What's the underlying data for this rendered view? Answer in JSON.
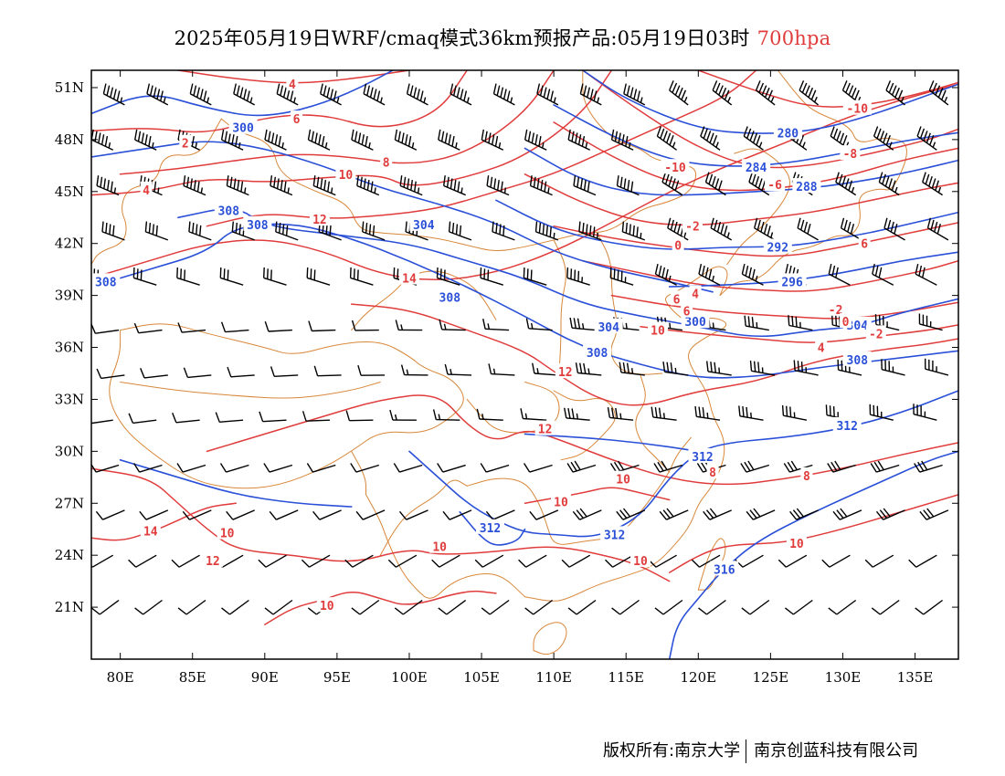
{
  "title": {
    "main": "2025年05月19日WRF/cmaq模式36km预报产品:05月19日03时",
    "level": "700hpa"
  },
  "map": {
    "lon_range": [
      78,
      138
    ],
    "lat_range": [
      18,
      52
    ],
    "lat_ticks": [
      "51N",
      "48N",
      "45N",
      "42N",
      "39N",
      "36N",
      "33N",
      "30N",
      "27N",
      "24N",
      "21N"
    ],
    "lat_tick_values": [
      51,
      48,
      45,
      42,
      39,
      36,
      33,
      30,
      27,
      24,
      21
    ],
    "lon_ticks": [
      "80E",
      "85E",
      "90E",
      "95E",
      "100E",
      "105E",
      "110E",
      "115E",
      "120E",
      "125E",
      "130E",
      "135E"
    ],
    "lon_tick_values": [
      80,
      85,
      90,
      95,
      100,
      105,
      110,
      115,
      120,
      125,
      130,
      135
    ],
    "colors": {
      "height_contour": "#2b50d8",
      "temperature_contour": "#e03c3c",
      "boundary": "#d8873a",
      "wind_barb": "#000000"
    },
    "height_labels": [
      {
        "text": "300",
        "lon": 88.5,
        "lat": 48.7
      },
      {
        "text": "308",
        "lon": 87.5,
        "lat": 43.9
      },
      {
        "text": "308",
        "lon": 89.5,
        "lat": 43.1
      },
      {
        "text": "304",
        "lon": 101.0,
        "lat": 43.1
      },
      {
        "text": "308",
        "lon": 79.0,
        "lat": 39.8
      },
      {
        "text": "308",
        "lon": 102.8,
        "lat": 38.9
      },
      {
        "text": "304",
        "lon": 113.8,
        "lat": 37.2
      },
      {
        "text": "300",
        "lon": 119.8,
        "lat": 37.5
      },
      {
        "text": "308",
        "lon": 113.0,
        "lat": 35.7
      },
      {
        "text": "280",
        "lon": 126.2,
        "lat": 48.4
      },
      {
        "text": "284",
        "lon": 124.0,
        "lat": 46.4
      },
      {
        "text": "288",
        "lon": 127.5,
        "lat": 45.3
      },
      {
        "text": "292",
        "lon": 125.5,
        "lat": 41.8
      },
      {
        "text": "296",
        "lon": 126.5,
        "lat": 39.8
      },
      {
        "text": "304",
        "lon": 131.0,
        "lat": 37.3
      },
      {
        "text": "308",
        "lon": 131.0,
        "lat": 35.3
      },
      {
        "text": "312",
        "lon": 130.3,
        "lat": 31.5
      },
      {
        "text": "312",
        "lon": 120.3,
        "lat": 29.7
      },
      {
        "text": "312",
        "lon": 105.6,
        "lat": 25.6
      },
      {
        "text": "312",
        "lon": 114.2,
        "lat": 25.2
      },
      {
        "text": "316",
        "lon": 121.8,
        "lat": 23.2
      }
    ],
    "temperature_labels": [
      {
        "text": "4",
        "lon": 91.9,
        "lat": 51.2
      },
      {
        "text": "6",
        "lon": 92.2,
        "lat": 49.2
      },
      {
        "text": "2",
        "lon": 84.5,
        "lat": 47.8
      },
      {
        "text": "4",
        "lon": 81.8,
        "lat": 45.1
      },
      {
        "text": "8",
        "lon": 98.4,
        "lat": 46.7
      },
      {
        "text": "10",
        "lon": 95.6,
        "lat": 46.0
      },
      {
        "text": "12",
        "lon": 93.8,
        "lat": 43.4
      },
      {
        "text": "14",
        "lon": 100.0,
        "lat": 40.0
      },
      {
        "text": "12",
        "lon": 110.8,
        "lat": 34.6
      },
      {
        "text": "12",
        "lon": 109.4,
        "lat": 31.3
      },
      {
        "text": "10",
        "lon": 110.5,
        "lat": 27.1
      },
      {
        "text": "10",
        "lon": 114.8,
        "lat": 28.4
      },
      {
        "text": "10",
        "lon": 102.1,
        "lat": 24.5
      },
      {
        "text": "10",
        "lon": 116.0,
        "lat": 23.7
      },
      {
        "text": "10",
        "lon": 87.4,
        "lat": 25.3
      },
      {
        "text": "12",
        "lon": 86.4,
        "lat": 23.7
      },
      {
        "text": "14",
        "lon": 82.1,
        "lat": 25.4
      },
      {
        "text": "10",
        "lon": 94.3,
        "lat": 21.1
      },
      {
        "text": "8",
        "lon": 121.0,
        "lat": 28.8
      },
      {
        "text": "8",
        "lon": 127.5,
        "lat": 28.6
      },
      {
        "text": "10",
        "lon": 126.8,
        "lat": 24.7
      },
      {
        "text": "-10",
        "lon": 118.4,
        "lat": 46.4
      },
      {
        "text": "-8",
        "lon": 130.5,
        "lat": 47.2
      },
      {
        "text": "-6",
        "lon": 125.3,
        "lat": 45.4
      },
      {
        "text": "-10",
        "lon": 131.0,
        "lat": 49.8
      },
      {
        "text": "-2",
        "lon": 119.6,
        "lat": 43.0
      },
      {
        "text": "0",
        "lon": 118.6,
        "lat": 41.9
      },
      {
        "text": "4",
        "lon": 119.8,
        "lat": 39.1
      },
      {
        "text": "6",
        "lon": 118.5,
        "lat": 38.8
      },
      {
        "text": "6",
        "lon": 119.2,
        "lat": 38.1
      },
      {
        "text": "10",
        "lon": 117.2,
        "lat": 37.0
      },
      {
        "text": "-2",
        "lon": 129.5,
        "lat": 38.2
      },
      {
        "text": "-2",
        "lon": 132.3,
        "lat": 36.8
      },
      {
        "text": "0",
        "lon": 130.2,
        "lat": 37.5
      },
      {
        "text": "4",
        "lon": 128.5,
        "lat": 36.0
      },
      {
        "text": "6",
        "lon": 131.5,
        "lat": 42.0
      }
    ]
  },
  "footer": {
    "left": "版权所有:南京大学",
    "right": "南京创蓝科技有限公司"
  }
}
